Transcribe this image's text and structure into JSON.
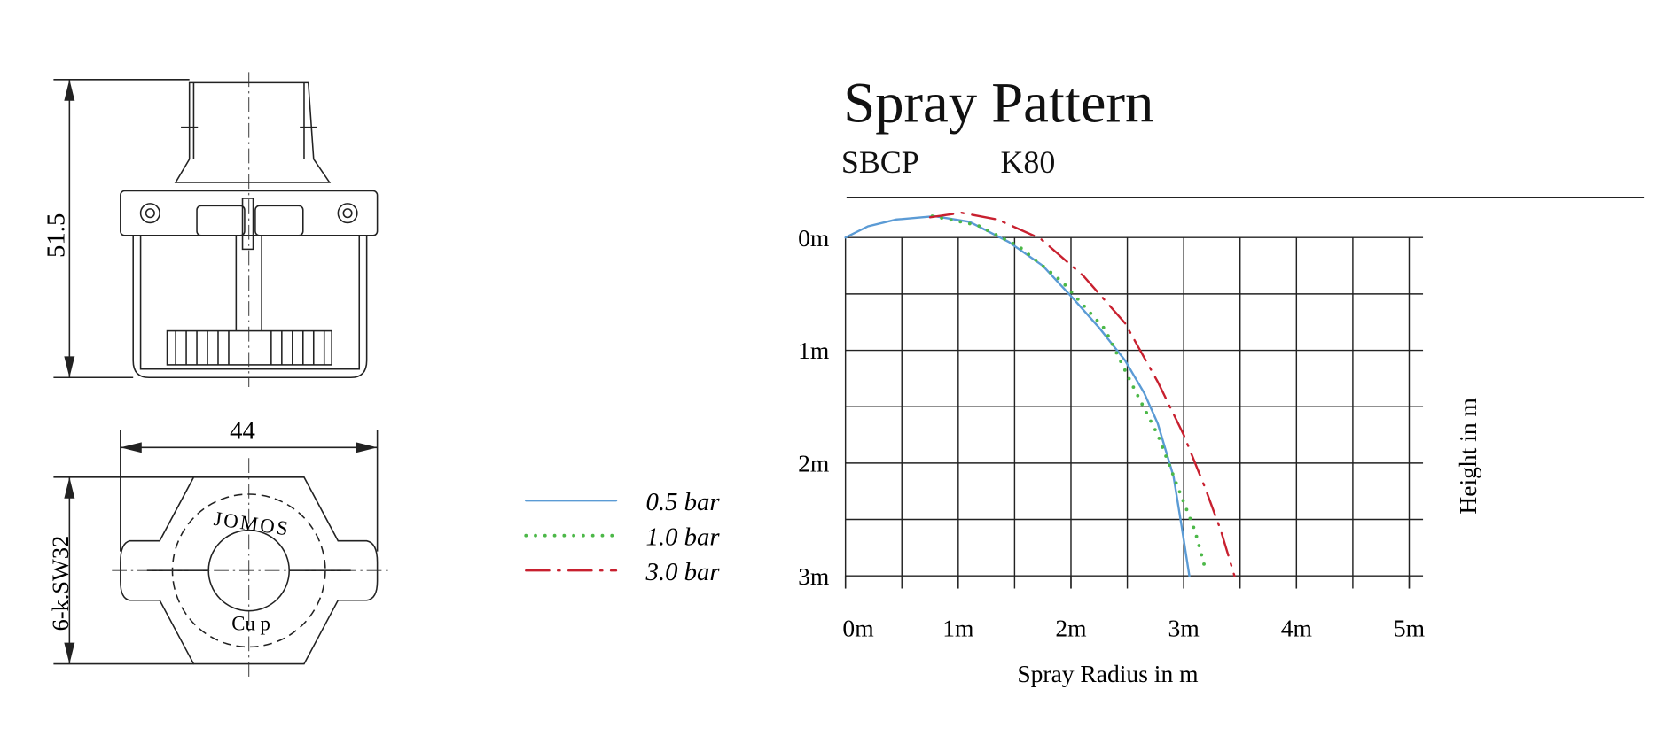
{
  "chart_data": {
    "type": "line",
    "title": "Spray Pattern",
    "subtitle": [
      "SBCP",
      "K80"
    ],
    "x_label": "Spray Radius in m",
    "y_label": "Height in m",
    "xlim": [
      0,
      5
    ],
    "ylim": [
      0,
      3
    ],
    "y_inverted": true,
    "xticks": [
      {
        "value": 0,
        "label": "0m"
      },
      {
        "value": 1,
        "label": "1m"
      },
      {
        "value": 2,
        "label": "2m"
      },
      {
        "value": 3,
        "label": "3m"
      },
      {
        "value": 4,
        "label": "4m"
      },
      {
        "value": 5,
        "label": "5m"
      }
    ],
    "yticks": [
      {
        "value": 0,
        "label": "0m"
      },
      {
        "value": 1,
        "label": "1m"
      },
      {
        "value": 2,
        "label": "2m"
      },
      {
        "value": 3,
        "label": "3m"
      }
    ],
    "x_grid": [
      0,
      0.5,
      1,
      1.5,
      2,
      2.5,
      3,
      3.5,
      4,
      4.5,
      5
    ],
    "y_grid": [
      0,
      0.5,
      1,
      1.5,
      2,
      2.5,
      3
    ],
    "grid": true,
    "legend": "left",
    "series": [
      {
        "name": "0.5 bar",
        "color": "#5b9bd5",
        "style": "solid",
        "x": [
          0,
          0.2,
          0.45,
          0.79,
          1.1,
          1.45,
          1.75,
          2.01,
          2.25,
          2.48,
          2.65,
          2.77,
          2.91,
          2.98,
          3.05
        ],
        "values": [
          0,
          -0.1,
          -0.16,
          -0.19,
          -0.14,
          0.04,
          0.25,
          0.53,
          0.8,
          1.09,
          1.38,
          1.65,
          2.12,
          2.55,
          3.0
        ]
      },
      {
        "name": "1.0 bar",
        "color": "#4cb848",
        "style": "dotted",
        "x": [
          0.77,
          1.17,
          1.54,
          1.92,
          2.3,
          2.53,
          2.77,
          2.95,
          3.1,
          3.2
        ],
        "values": [
          -0.19,
          -0.11,
          0.08,
          0.39,
          0.81,
          1.28,
          1.75,
          2.22,
          2.6,
          2.97
        ]
      },
      {
        "name": "3.0 bar",
        "color": "#c8202f",
        "style": "dashdot",
        "x": [
          0.75,
          1.03,
          1.35,
          1.73,
          2.11,
          2.48,
          2.77,
          3.0,
          3.19,
          3.33,
          3.45
        ],
        "values": [
          -0.18,
          -0.22,
          -0.16,
          0.01,
          0.34,
          0.76,
          1.28,
          1.75,
          2.22,
          2.6,
          3.0
        ]
      }
    ]
  },
  "drawing": {
    "height": "51.5",
    "width": "44",
    "hex": "6-k.SW32",
    "brand": "JOMOS",
    "material": "Cu p"
  }
}
